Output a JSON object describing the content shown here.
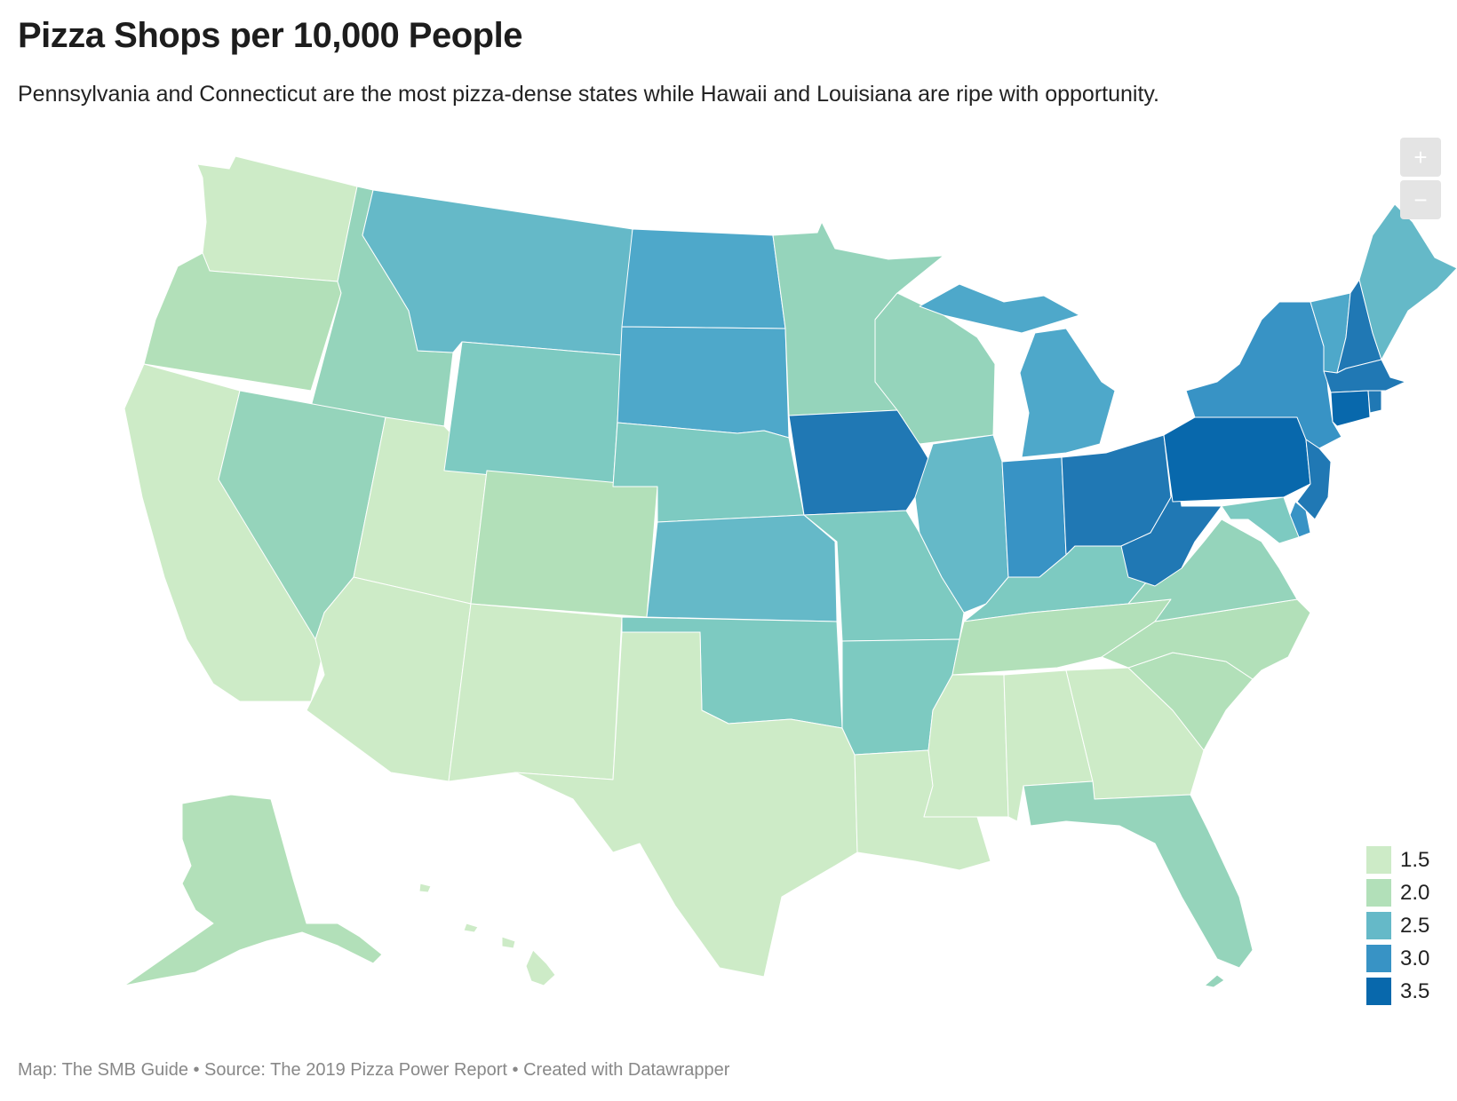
{
  "header": {
    "title": "Pizza Shops per 10,000 People",
    "subtitle": "Pennsylvania and Connecticut are the most pizza-dense states while Hawaii and Louisiana are ripe with opportunity."
  },
  "zoom": {
    "in_label": "+",
    "out_label": "−"
  },
  "palette": {
    "1.5": "#cdebc7",
    "2.0": "#b2e0b9",
    "2.3": "#95d4bb",
    "2.5": "#7dcac1",
    "2.7": "#65b9c8",
    "2.9": "#4ea8ca",
    "3.1": "#3893c5",
    "3.3": "#2078b4",
    "3.5": "#0868ac"
  },
  "legend": {
    "items": [
      {
        "label": "1.5",
        "color": "#cdebc7"
      },
      {
        "label": "2.0",
        "color": "#b2e0b9"
      },
      {
        "label": "2.5",
        "color": "#65b9c8"
      },
      {
        "label": "3.0",
        "color": "#3893c5"
      },
      {
        "label": "3.5",
        "color": "#0868ac"
      }
    ]
  },
  "states": [
    {
      "id": "WA",
      "tier": "1.5"
    },
    {
      "id": "OR",
      "tier": "2.0"
    },
    {
      "id": "CA",
      "tier": "1.5"
    },
    {
      "id": "ID",
      "tier": "2.3"
    },
    {
      "id": "NV",
      "tier": "2.3"
    },
    {
      "id": "UT",
      "tier": "1.5"
    },
    {
      "id": "AZ",
      "tier": "1.5"
    },
    {
      "id": "MT",
      "tier": "2.7"
    },
    {
      "id": "WY",
      "tier": "2.5"
    },
    {
      "id": "CO",
      "tier": "2.0"
    },
    {
      "id": "NM",
      "tier": "1.5"
    },
    {
      "id": "ND",
      "tier": "2.9"
    },
    {
      "id": "SD",
      "tier": "2.9"
    },
    {
      "id": "NE",
      "tier": "2.5"
    },
    {
      "id": "KS",
      "tier": "2.7"
    },
    {
      "id": "OK",
      "tier": "2.5"
    },
    {
      "id": "TX",
      "tier": "1.5"
    },
    {
      "id": "MN",
      "tier": "2.3"
    },
    {
      "id": "IA",
      "tier": "3.3"
    },
    {
      "id": "MO",
      "tier": "2.5"
    },
    {
      "id": "AR",
      "tier": "2.5"
    },
    {
      "id": "LA",
      "tier": "1.5"
    },
    {
      "id": "WI",
      "tier": "2.3"
    },
    {
      "id": "IL",
      "tier": "2.7"
    },
    {
      "id": "MS",
      "tier": "1.5"
    },
    {
      "id": "MI",
      "tier": "2.9"
    },
    {
      "id": "IN",
      "tier": "3.1"
    },
    {
      "id": "KY",
      "tier": "2.5"
    },
    {
      "id": "TN",
      "tier": "2.0"
    },
    {
      "id": "AL",
      "tier": "1.5"
    },
    {
      "id": "OH",
      "tier": "3.3"
    },
    {
      "id": "WV",
      "tier": "3.3"
    },
    {
      "id": "VA",
      "tier": "2.3"
    },
    {
      "id": "NC",
      "tier": "2.0"
    },
    {
      "id": "SC",
      "tier": "2.0"
    },
    {
      "id": "GA",
      "tier": "1.5"
    },
    {
      "id": "FL",
      "tier": "2.3"
    },
    {
      "id": "PA",
      "tier": "3.5"
    },
    {
      "id": "NY",
      "tier": "3.1"
    },
    {
      "id": "NJ",
      "tier": "3.3"
    },
    {
      "id": "DE",
      "tier": "3.1"
    },
    {
      "id": "MD",
      "tier": "2.5"
    },
    {
      "id": "VT",
      "tier": "2.9"
    },
    {
      "id": "NH",
      "tier": "3.3"
    },
    {
      "id": "ME",
      "tier": "2.7"
    },
    {
      "id": "MA",
      "tier": "3.3"
    },
    {
      "id": "CT",
      "tier": "3.5"
    },
    {
      "id": "RI",
      "tier": "3.3"
    },
    {
      "id": "AK",
      "tier": "2.0"
    },
    {
      "id": "HI",
      "tier": "1.5"
    }
  ],
  "footer": {
    "credits": "Map: The SMB Guide • Source: The 2019 Pizza Power Report • Created with Datawrapper"
  }
}
